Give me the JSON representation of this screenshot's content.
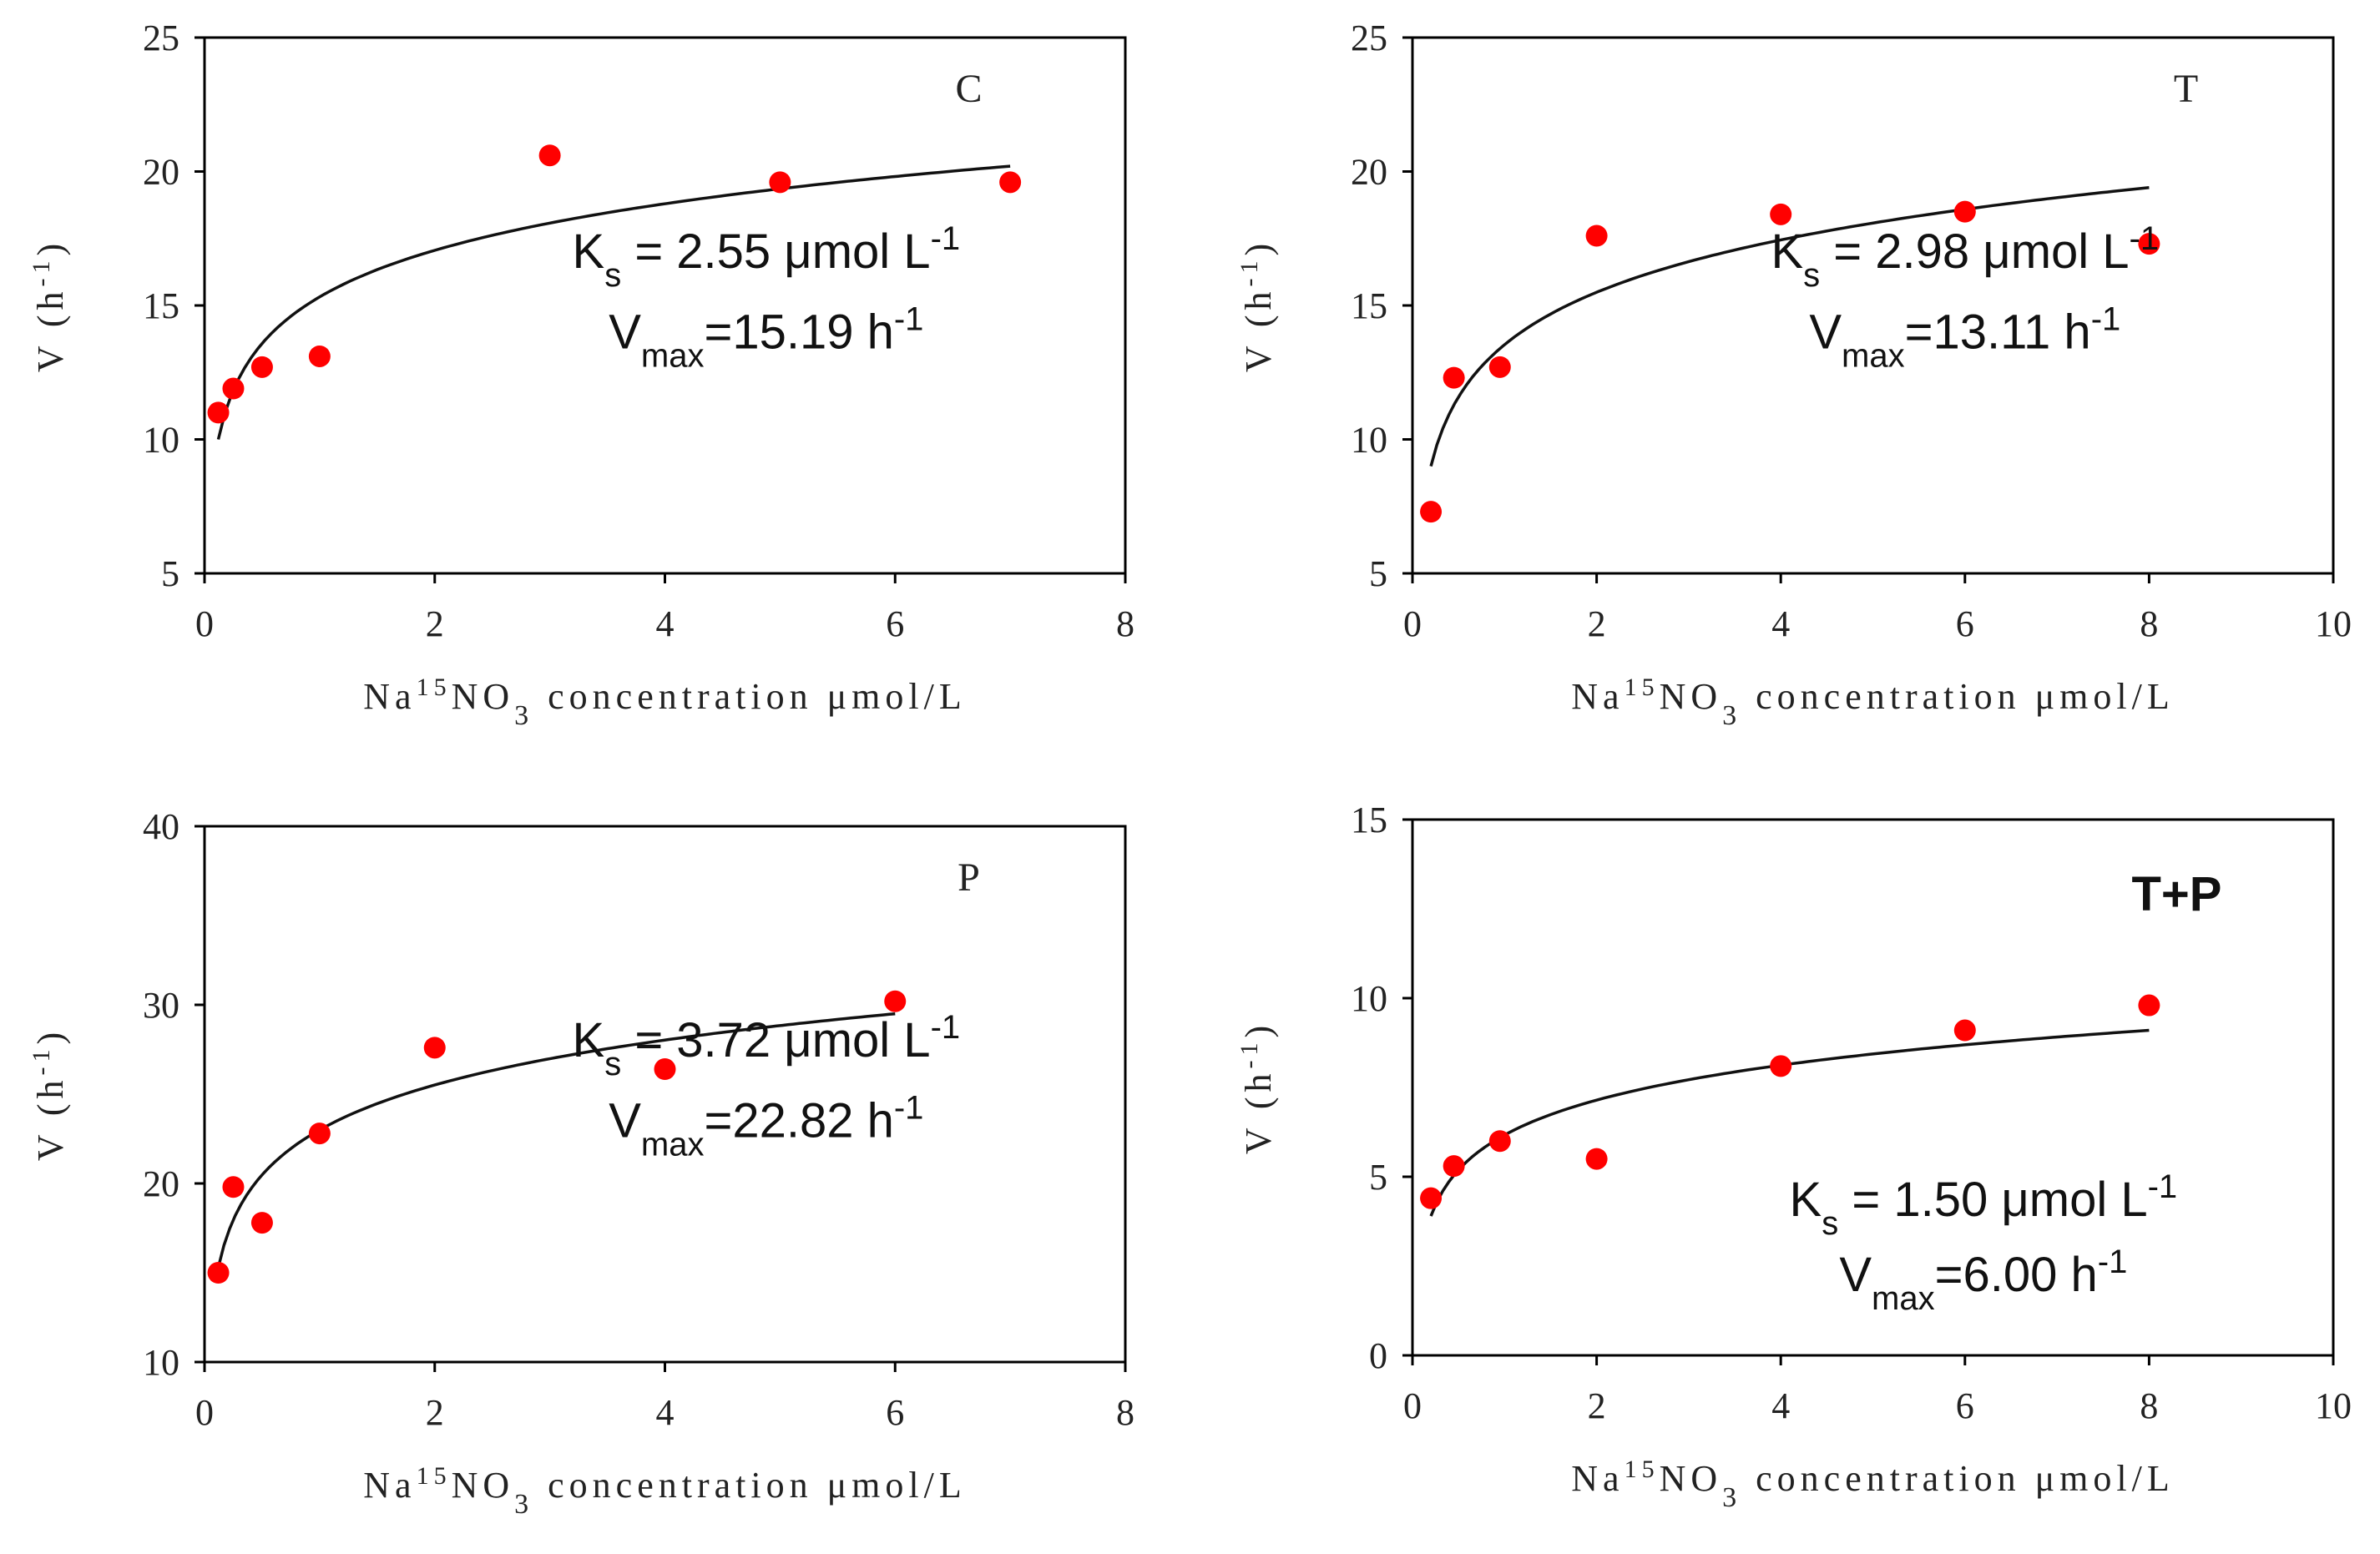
{
  "chart_data": [
    {
      "type": "scatter",
      "panel": "C",
      "panel_style": "serif",
      "title": "",
      "xlabel": "Na15NO3 concentration μmol/L",
      "ylabel": "V (h-1)",
      "xlim": [
        0,
        8
      ],
      "ylim": [
        5,
        25
      ],
      "xticks": [
        0,
        2,
        4,
        6,
        8
      ],
      "yticks": [
        5,
        10,
        15,
        20,
        25
      ],
      "points": {
        "x": [
          0.12,
          0.25,
          0.5,
          1.0,
          3.0,
          5.0,
          7.0
        ],
        "y": [
          11.0,
          11.9,
          12.7,
          13.1,
          20.6,
          19.6,
          19.6
        ]
      },
      "fit": {
        "kind": "log",
        "x_range": [
          0.12,
          7.0
        ],
        "y_at_start": 10.0,
        "y_at_end": 20.2
      },
      "annotation": {
        "ks_value": "2.55",
        "ks_unit": "μmol L",
        "ks_exp": "-1",
        "vmax_value": "15.19",
        "vmax_unit": "h",
        "vmax_exp": "-1"
      }
    },
    {
      "type": "scatter",
      "panel": "T",
      "panel_style": "serif",
      "title": "",
      "xlabel": "Na15NO3 concentration μmol/L",
      "ylabel": "V (h-1)",
      "xlim": [
        0,
        10
      ],
      "ylim": [
        5,
        25
      ],
      "xticks": [
        0,
        2,
        4,
        6,
        8,
        10
      ],
      "yticks": [
        5,
        10,
        15,
        20,
        25
      ],
      "points": {
        "x": [
          0.2,
          0.45,
          0.95,
          2.0,
          4.0,
          6.0,
          8.0
        ],
        "y": [
          7.3,
          12.3,
          12.7,
          17.6,
          18.4,
          18.5,
          17.3
        ]
      },
      "fit": {
        "kind": "log",
        "x_range": [
          0.2,
          8.0
        ],
        "y_at_start": 9.0,
        "y_at_end": 19.4
      },
      "annotation": {
        "ks_value": "2.98",
        "ks_unit": "μmol L",
        "ks_exp": "-1",
        "vmax_value": "13.11",
        "vmax_unit": "h",
        "vmax_exp": "-1"
      }
    },
    {
      "type": "scatter",
      "panel": "P",
      "panel_style": "serif",
      "title": "",
      "xlabel": "Na15NO3 concentration μmol/L",
      "ylabel": "V (h-1)",
      "xlim": [
        0,
        8
      ],
      "ylim": [
        10,
        40
      ],
      "xticks": [
        0,
        2,
        4,
        6,
        8
      ],
      "yticks": [
        10,
        20,
        30,
        40
      ],
      "points": {
        "x": [
          0.12,
          0.25,
          0.5,
          1.0,
          2.0,
          4.0,
          6.0
        ],
        "y": [
          15.0,
          19.8,
          17.8,
          22.8,
          27.6,
          26.4,
          30.2
        ]
      },
      "fit": {
        "kind": "log",
        "x_range": [
          0.12,
          6.0
        ],
        "y_at_start": 15.3,
        "y_at_end": 29.5
      },
      "annotation": {
        "ks_value": "3.72",
        "ks_unit": "μmol L",
        "ks_exp": "-1",
        "vmax_value": "22.82",
        "vmax_unit": "h",
        "vmax_exp": "-1"
      }
    },
    {
      "type": "scatter",
      "panel": "T+P",
      "panel_style": "bold",
      "title": "",
      "xlabel": "Na15NO3 concentration μmol/L",
      "ylabel": "V (h-1)",
      "xlim": [
        0,
        10
      ],
      "ylim": [
        0,
        15
      ],
      "xticks": [
        0,
        2,
        4,
        6,
        8,
        10
      ],
      "yticks": [
        0,
        5,
        10,
        15
      ],
      "points": {
        "x": [
          0.2,
          0.45,
          0.95,
          2.0,
          4.0,
          6.0,
          8.0
        ],
        "y": [
          4.4,
          5.3,
          6.0,
          5.5,
          8.1,
          9.1,
          9.8
        ]
      },
      "fit": {
        "kind": "log",
        "x_range": [
          0.2,
          8.0
        ],
        "y_at_start": 3.9,
        "y_at_end": 9.1
      },
      "annotation": {
        "ks_value": "1.50",
        "ks_unit": "μmol L",
        "ks_exp": "-1",
        "vmax_value": "6.00",
        "vmax_unit": "h",
        "vmax_exp": "-1"
      }
    }
  ],
  "colors": {
    "point": "#ff0000",
    "fit": "#111111",
    "frame": "#000000"
  },
  "text": {
    "x_title_prefix": "Na",
    "x_title_sup": "15",
    "x_title_mid": "NO",
    "x_title_sub": "3",
    "x_title_suffix": " concentration μmol/L",
    "y_title_main": "V (h",
    "y_title_sup": "-1",
    "y_title_close": ")",
    "ks_symbol": "K",
    "ks_sub": "s",
    "ks_eq": " = ",
    "vmax_symbol": "V",
    "vmax_sub": "max",
    "vmax_eq": "="
  }
}
